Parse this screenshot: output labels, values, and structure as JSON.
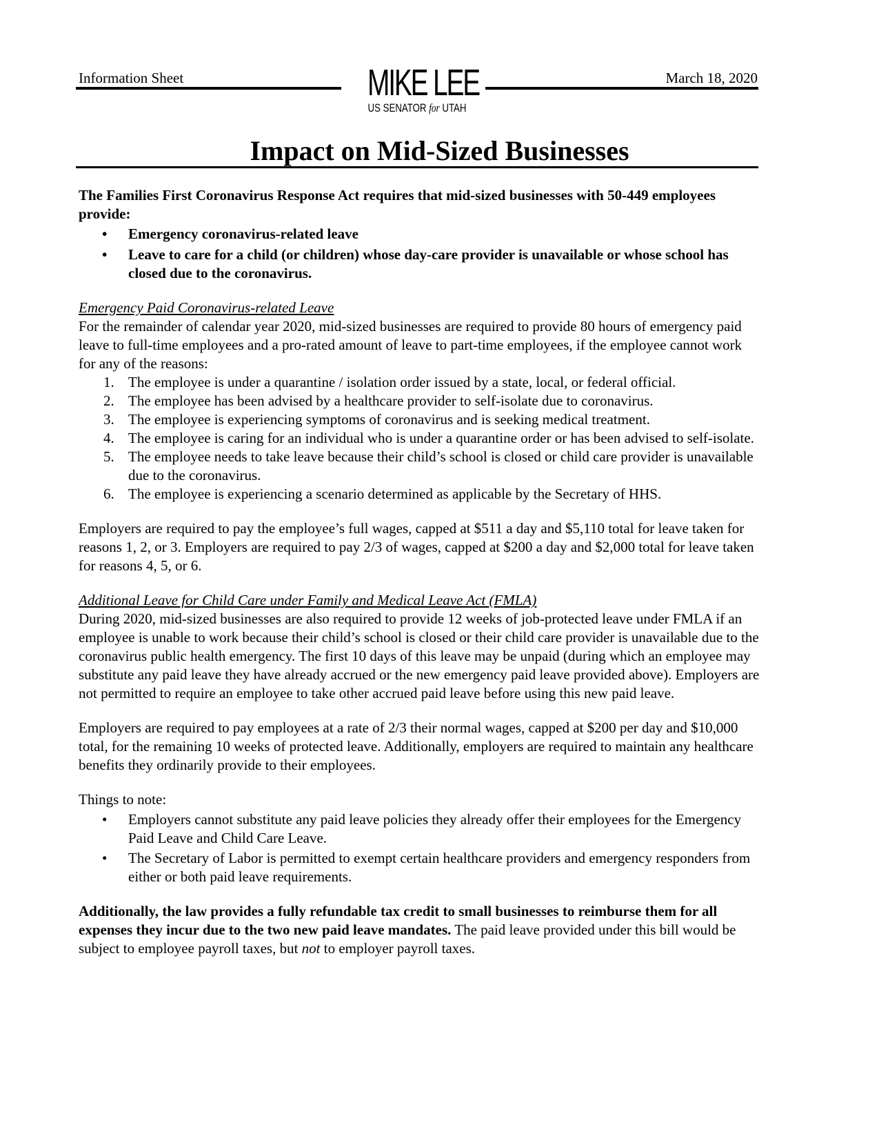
{
  "header": {
    "left": "Information Sheet",
    "right": "March 18, 2020",
    "logo_name": "MIKE LEE",
    "logo_sub_a": "US SENATOR",
    "logo_sub_for": "for",
    "logo_sub_b": "UTAH"
  },
  "title": "Impact on Mid-Sized Businesses",
  "intro": {
    "text": "The Families First Coronavirus Response Act requires that mid-sized businesses with 50-449 employees provide:",
    "bullets": [
      "Emergency coronavirus-related leave",
      "Leave to care for a child (or children) whose day-care provider is unavailable or whose school has closed due to the coronavirus."
    ]
  },
  "emergency": {
    "heading": "Emergency Paid Coronavirus-related Leave",
    "text": "For the remainder of calendar year 2020, mid-sized businesses are required to provide 80 hours of emergency paid leave to full-time employees and a pro-rated amount of leave to part-time employees, if the employee cannot work for any of the reasons:",
    "items": [
      "The employee is under a quarantine / isolation order issued by a state, local, or federal official.",
      "The employee has been advised by a healthcare provider to self-isolate due to coronavirus.",
      "The employee is experiencing symptoms of coronavirus and is seeking medical treatment.",
      "The employee is caring for an individual who is under a quarantine order or has been advised to self-isolate.",
      "The employee needs to take leave because their child’s school is closed or child care provider is unavailable due to the coronavirus.",
      "The employee is experiencing a scenario determined as applicable by the Secretary of HHS."
    ],
    "pay": "Employers are required to pay the employee’s full wages, capped at $511 a day and $5,110 total for leave taken for reasons 1, 2, or 3. Employers are required to pay 2/3 of wages, capped at $200 a day and $2,000 total for leave taken for reasons 4, 5, or 6."
  },
  "fmla": {
    "heading": "Additional Leave for Child Care under Family and Medical Leave Act (FMLA)",
    "text": "During 2020, mid-sized businesses are also required to provide 12 weeks of job-protected leave under FMLA if an employee is unable to work because their child’s school is closed or their child care provider is unavailable due to the coronavirus public health emergency. The first 10 days of this leave may be unpaid (during which an employee may substitute any paid leave they have already accrued or the new emergency paid leave provided above). Employers are not permitted to require an employee to take other accrued paid leave before using this new paid leave.",
    "pay": "Employers are required to pay employees at a rate of 2/3 their normal wages, capped at $200 per day and $10,000 total, for the remaining 10 weeks of protected leave. Additionally, employers are required to maintain any healthcare benefits they ordinarily provide to their employees."
  },
  "notes": {
    "heading": "Things to note:",
    "bullets": [
      "Employers cannot substitute any paid leave policies they already offer their employees for the Emergency Paid Leave and Child Care Leave.",
      "The Secretary of Labor is permitted to exempt certain healthcare providers and emergency responders from either or both paid leave requirements."
    ]
  },
  "closing": {
    "bold": "Additionally, the law provides a fully refundable tax credit to small businesses to reimburse them for all expenses they incur due to the two new paid leave mandates.",
    "text_a": " The paid leave provided under this bill would be subject to employee payroll taxes, but ",
    "emph": "not",
    "text_b": " to employer payroll taxes."
  }
}
